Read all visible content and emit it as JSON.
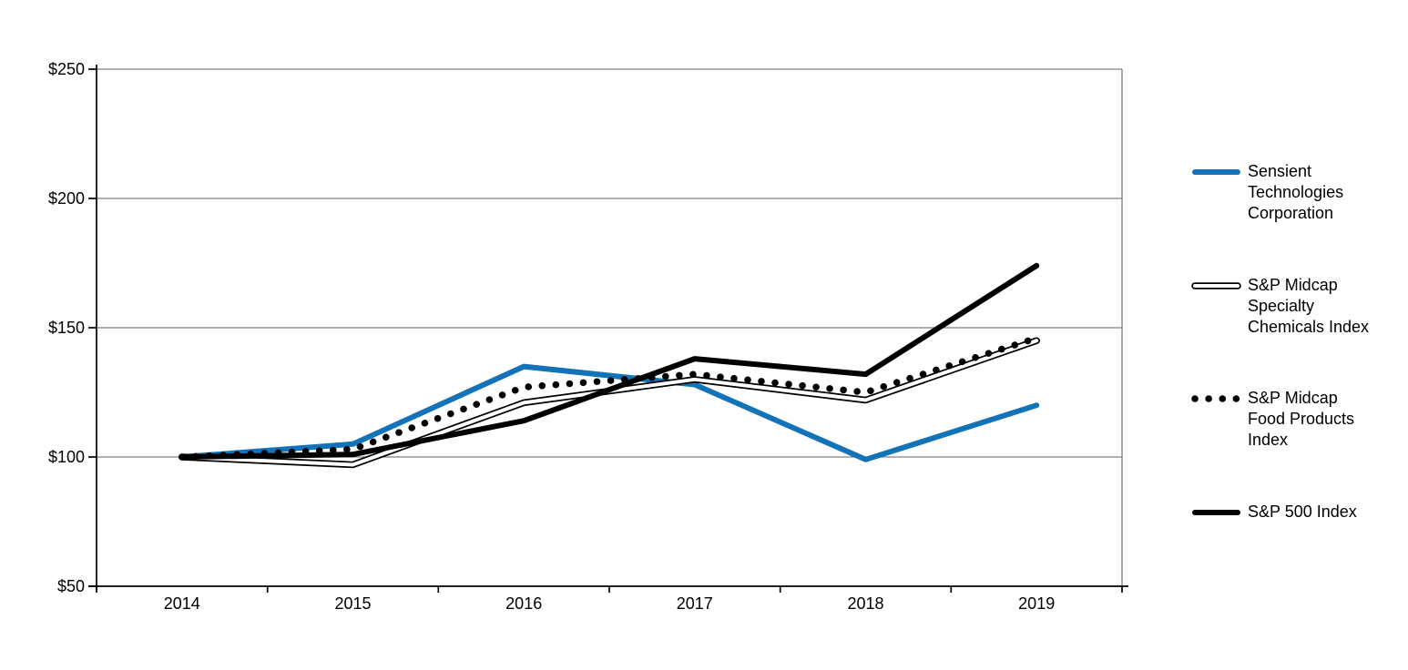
{
  "chart_data": {
    "type": "line",
    "x": [
      "2014",
      "2015",
      "2016",
      "2017",
      "2018",
      "2019"
    ],
    "series": [
      {
        "name": "Sensient Technologies Corporation",
        "style": "solid-blue",
        "values": [
          100,
          105,
          135,
          128,
          99,
          120
        ]
      },
      {
        "name": "S&P Midcap Specialty Chemicals Index",
        "style": "double-black",
        "values": [
          100,
          97,
          121,
          130,
          122,
          145
        ]
      },
      {
        "name": "S&P Midcap Food Products Index",
        "style": "dotted-black",
        "values": [
          100,
          103,
          127,
          132,
          125,
          146
        ]
      },
      {
        "name": "S&P 500 Index",
        "style": "solid-black",
        "values": [
          100,
          101,
          114,
          138,
          132,
          174
        ]
      }
    ],
    "title": "",
    "xlabel": "",
    "ylabel": "",
    "ylim": [
      50,
      250
    ],
    "yticks": [
      50,
      100,
      150,
      200,
      250
    ],
    "ytick_labels": [
      "$50",
      "$100",
      "$150",
      "$200",
      "$250"
    ],
    "xtick_labels": [
      "2014",
      "2015",
      "2016",
      "2017",
      "2018",
      "2019"
    ],
    "grid": true,
    "legend_position": "right",
    "colors": {
      "accent_blue": "#1373B9",
      "line_black": "#000000",
      "grid_gray": "#808080",
      "background": "#ffffff"
    }
  },
  "legend": {
    "items": [
      {
        "label": "Sensient Technologies Corporation",
        "display": "Sensient\nTechnologies\nCorporation",
        "style": "solid-blue"
      },
      {
        "label": "S&P Midcap Specialty Chemicals Index",
        "display": "S&P Midcap\nSpecialty\nChemicals Index",
        "style": "double-black"
      },
      {
        "label": "S&P Midcap Food Products Index",
        "display": "S&P Midcap\nFood Products\nIndex",
        "style": "dotted-black"
      },
      {
        "label": "S&P 500 Index",
        "display": "S&P 500 Index",
        "style": "solid-black"
      }
    ]
  }
}
